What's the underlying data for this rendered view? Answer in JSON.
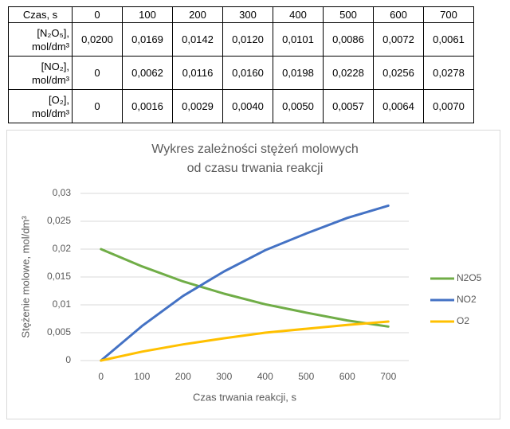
{
  "table": {
    "header": [
      "Czas, s",
      "0",
      "100",
      "200",
      "300",
      "400",
      "500",
      "600",
      "700"
    ],
    "rows": [
      [
        "[N₂O₅], mol/dm³",
        "0,0200",
        "0,0169",
        "0,0142",
        "0,0120",
        "0,0101",
        "0,0086",
        "0,0072",
        "0,0061"
      ],
      [
        "[NO₂], mol/dm³",
        "0",
        "0,0062",
        "0,0116",
        "0,0160",
        "0,0198",
        "0,0228",
        "0,0256",
        "0,0278"
      ],
      [
        "[O₂], mol/dm³",
        "0",
        "0,0016",
        "0,0029",
        "0,0040",
        "0,0050",
        "0,0057",
        "0,0064",
        "0,0070"
      ]
    ]
  },
  "chart_data": {
    "type": "line",
    "title": [
      "Wykres zależności stężeń molowych",
      "od czasu trwania reakcji"
    ],
    "x_label": "Czas trwania reakcji, s",
    "y_label": "Stężenie molowe, mol/dm³",
    "x": [
      0,
      100,
      200,
      300,
      400,
      500,
      600,
      700
    ],
    "series": [
      {
        "name": "N2O5",
        "color": "#70ad47",
        "values": [
          0.02,
          0.0169,
          0.0142,
          0.012,
          0.0101,
          0.0086,
          0.0072,
          0.0061
        ]
      },
      {
        "name": "NO2",
        "color": "#4472c4",
        "values": [
          0,
          0.0062,
          0.0116,
          0.016,
          0.0198,
          0.0228,
          0.0256,
          0.0278
        ]
      },
      {
        "name": "O2",
        "color": "#ffc000",
        "values": [
          0,
          0.0016,
          0.0029,
          0.004,
          0.005,
          0.0057,
          0.0064,
          0.007
        ]
      }
    ],
    "xlim": [
      -50,
      750
    ],
    "xticks": [
      0,
      100,
      200,
      300,
      400,
      500,
      600,
      700
    ],
    "ylim": [
      0,
      0.03
    ],
    "yticks": [
      0,
      {
        "value": 0.005,
        "label": "0,005"
      },
      {
        "value": 0.01,
        "label": "0,01"
      },
      {
        "value": 0.015,
        "label": "0,015"
      },
      {
        "value": 0.02,
        "label": "0,02"
      },
      {
        "value": 0.025,
        "label": "0,025"
      },
      {
        "value": 0.03,
        "label": "0,03"
      }
    ],
    "grid": true,
    "legend": "right"
  }
}
